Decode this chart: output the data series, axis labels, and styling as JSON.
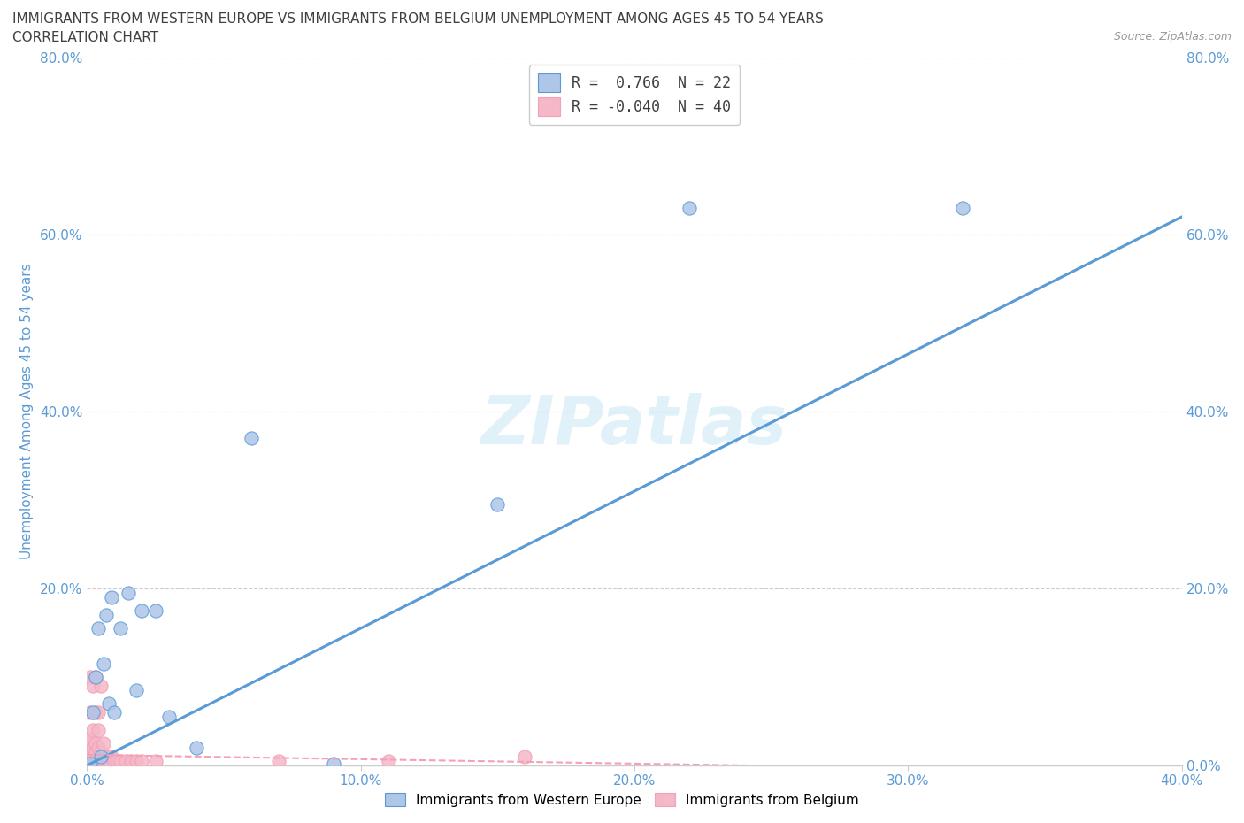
{
  "title_line1": "IMMIGRANTS FROM WESTERN EUROPE VS IMMIGRANTS FROM BELGIUM UNEMPLOYMENT AMONG AGES 45 TO 54 YEARS",
  "title_line2": "CORRELATION CHART",
  "source_text": "Source: ZipAtlas.com",
  "ylabel": "Unemployment Among Ages 45 to 54 years",
  "watermark": "ZIPatlas",
  "legend_entry1": "R =  0.766  N = 22",
  "legend_entry2": "R = -0.040  N = 40",
  "blue_scatter_x": [
    0.001,
    0.002,
    0.003,
    0.004,
    0.005,
    0.006,
    0.007,
    0.008,
    0.009,
    0.01,
    0.012,
    0.015,
    0.018,
    0.02,
    0.025,
    0.03,
    0.04,
    0.06,
    0.09,
    0.15,
    0.22,
    0.32
  ],
  "blue_scatter_y": [
    0.002,
    0.06,
    0.1,
    0.155,
    0.01,
    0.115,
    0.17,
    0.07,
    0.19,
    0.06,
    0.155,
    0.195,
    0.085,
    0.175,
    0.175,
    0.055,
    0.02,
    0.37,
    0.002,
    0.295,
    0.63,
    0.63
  ],
  "pink_scatter_x": [
    0.0002,
    0.0003,
    0.0005,
    0.0008,
    0.001,
    0.001,
    0.001,
    0.0015,
    0.002,
    0.002,
    0.002,
    0.002,
    0.003,
    0.003,
    0.003,
    0.003,
    0.003,
    0.004,
    0.004,
    0.004,
    0.004,
    0.005,
    0.005,
    0.005,
    0.006,
    0.006,
    0.007,
    0.008,
    0.009,
    0.01,
    0.011,
    0.012,
    0.014,
    0.016,
    0.018,
    0.02,
    0.025,
    0.07,
    0.11,
    0.16
  ],
  "pink_scatter_y": [
    0.005,
    0.01,
    0.015,
    0.025,
    0.03,
    0.06,
    0.1,
    0.005,
    0.01,
    0.02,
    0.04,
    0.09,
    0.005,
    0.015,
    0.025,
    0.06,
    0.1,
    0.005,
    0.02,
    0.04,
    0.06,
    0.005,
    0.015,
    0.09,
    0.005,
    0.025,
    0.01,
    0.005,
    0.01,
    0.005,
    0.005,
    0.005,
    0.005,
    0.005,
    0.005,
    0.005,
    0.005,
    0.005,
    0.005,
    0.01
  ],
  "blue_line_x": [
    0.0,
    0.4
  ],
  "blue_line_y": [
    0.0,
    0.62
  ],
  "pink_line_x": [
    0.0,
    0.4
  ],
  "pink_line_y": [
    0.012,
    -0.008
  ],
  "xlim": [
    0.0,
    0.4
  ],
  "ylim": [
    0.0,
    0.8
  ],
  "xticks": [
    0.0,
    0.1,
    0.2,
    0.3,
    0.4
  ],
  "xtick_labels": [
    "0.0%",
    "10.0%",
    "20.0%",
    "30.0%",
    "40.0%"
  ],
  "yticks": [
    0.0,
    0.2,
    0.4,
    0.6,
    0.8
  ],
  "left_ytick_labels": [
    "",
    "20.0%",
    "40.0%",
    "60.0%",
    "80.0%"
  ],
  "right_ytick_labels": [
    "0.0%",
    "20.0%",
    "40.0%",
    "60.0%",
    "80.0%"
  ],
  "blue_color": "#5b9bd5",
  "pink_color": "#f4a0b5",
  "blue_scatter_color": "#aec6e8",
  "pink_scatter_color": "#f4b8c8",
  "grid_color": "#cccccc",
  "background_color": "#ffffff",
  "title_color": "#404040",
  "axis_label_color": "#5b9bd5",
  "tick_label_color": "#5b9bd5"
}
